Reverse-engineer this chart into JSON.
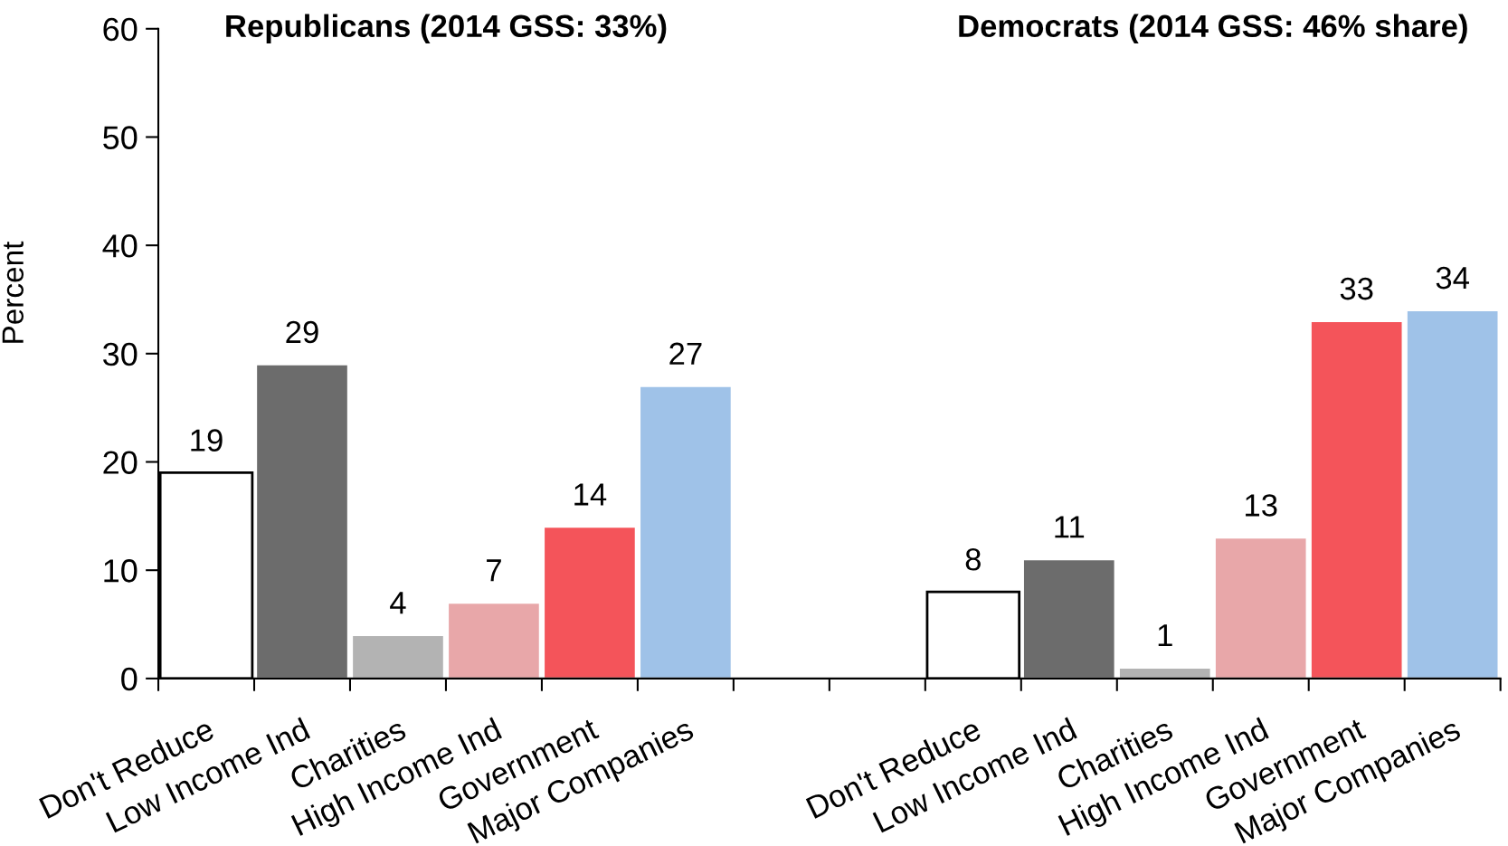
{
  "chart_data": {
    "type": "bar",
    "ylabel": "Percent",
    "annotations": [
      "Republicans (2014 GSS: 33%)",
      "Democrats (2014 GSS: 46% share)"
    ],
    "categories": [
      "Don't Reduce",
      "Low Income Ind",
      "Charities",
      "High Income Ind",
      "Government",
      "Major Companies",
      null,
      null,
      "Don't Reduce",
      "Low Income Ind",
      "Charities",
      "High Income Ind",
      "Government",
      "Major Companies"
    ],
    "values": [
      19,
      29,
      4,
      7,
      14,
      27,
      null,
      null,
      8,
      11,
      1,
      13,
      33,
      34
    ],
    "colors": [
      "#ffffff",
      "#6c6c6c",
      "#b3b3b3",
      "#e8a7a9",
      "#f4545a",
      "#9fc2e8",
      null,
      null,
      "#ffffff",
      "#6c6c6c",
      "#b3b3b3",
      "#e8a7a9",
      "#f4545a",
      "#9fc2e8"
    ],
    "ylim": [
      0,
      60
    ],
    "yticks": [
      0,
      10,
      20,
      30,
      40,
      50,
      60
    ],
    "data_labels": true
  }
}
